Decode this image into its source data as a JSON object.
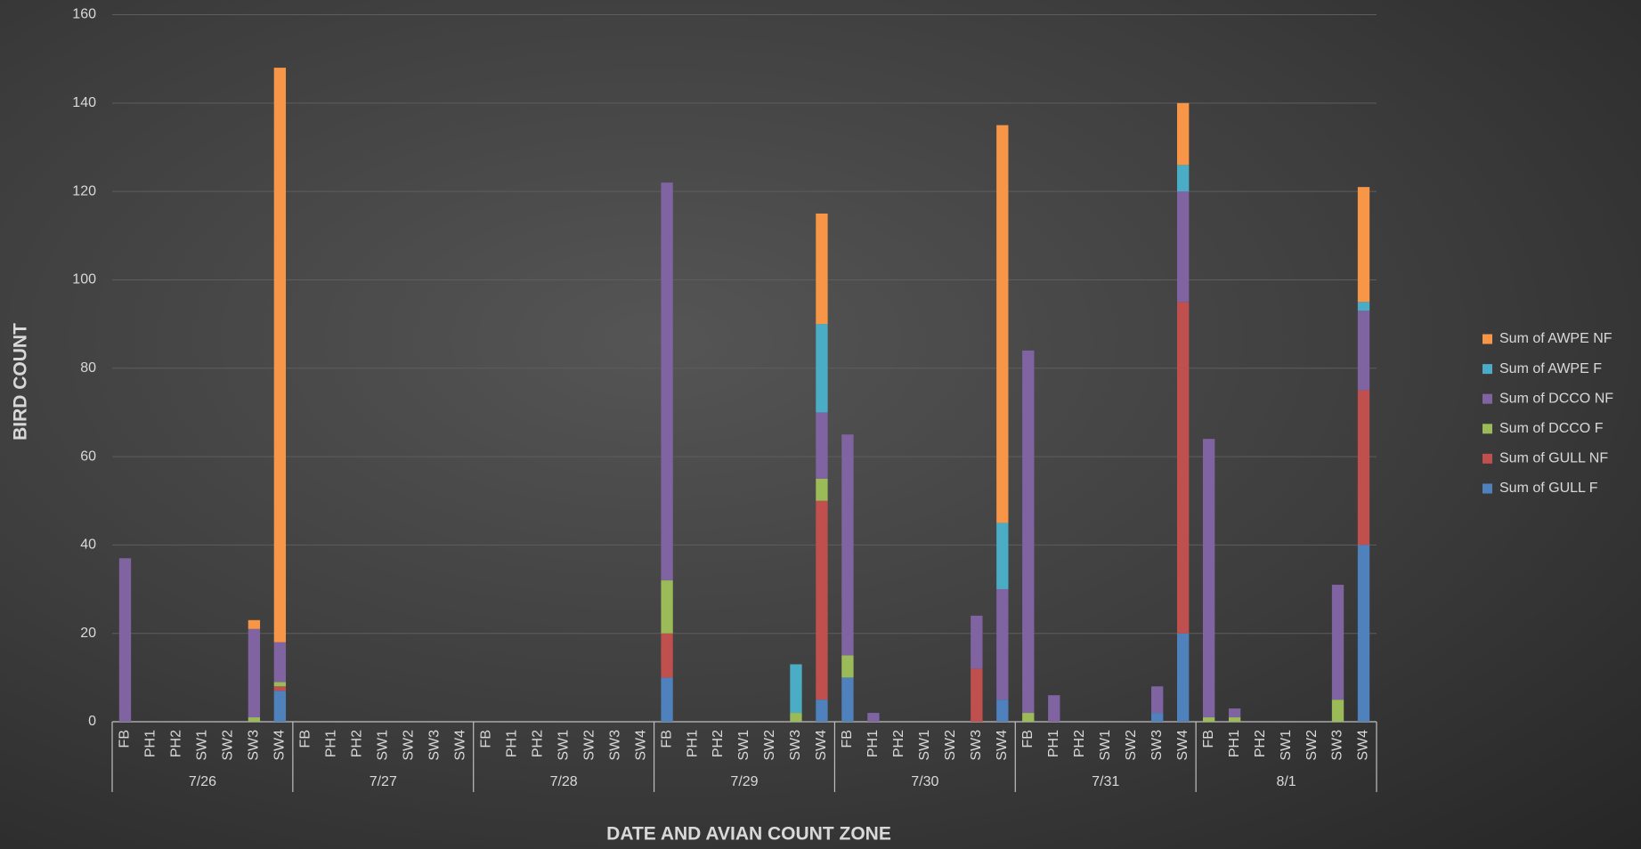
{
  "chart_data": {
    "type": "stacked_bar",
    "x_label": "DATE AND AVIAN COUNT ZONE",
    "y_label": "BIRD COUNT",
    "groups": [
      "7/26",
      "7/27",
      "7/28",
      "7/29",
      "7/30",
      "7/31",
      "8/1"
    ],
    "categories": [
      "FB",
      "PH1",
      "PH2",
      "SW1",
      "SW2",
      "SW3",
      "SW4",
      "FB",
      "PH1",
      "PH2",
      "SW1",
      "SW2",
      "SW3",
      "SW4",
      "FB",
      "PH1",
      "PH2",
      "SW1",
      "SW2",
      "SW3",
      "SW4",
      "FB",
      "PH1",
      "PH2",
      "SW1",
      "SW2",
      "SW3",
      "SW4",
      "FB",
      "PH1",
      "PH2",
      "SW1",
      "SW2",
      "SW3",
      "SW4",
      "FB",
      "PH1",
      "PH2",
      "SW1",
      "SW2",
      "SW3",
      "SW4",
      "FB",
      "PH1",
      "PH2",
      "SW1",
      "SW2",
      "SW3",
      "SW4"
    ],
    "series": [
      {
        "name": "Sum of GULL F",
        "color": "#4f81bd",
        "values": [
          0,
          0,
          0,
          0,
          0,
          0,
          7,
          0,
          0,
          0,
          0,
          0,
          0,
          0,
          0,
          0,
          0,
          0,
          0,
          0,
          0,
          10,
          0,
          0,
          0,
          0,
          0,
          5,
          10,
          0,
          0,
          0,
          0,
          0,
          5,
          0,
          0,
          0,
          0,
          0,
          2,
          20,
          0,
          0,
          0,
          0,
          0,
          0,
          40
        ]
      },
      {
        "name": "Sum of GULL NF",
        "color": "#c0504d",
        "values": [
          0,
          0,
          0,
          0,
          0,
          0,
          1,
          0,
          0,
          0,
          0,
          0,
          0,
          0,
          0,
          0,
          0,
          0,
          0,
          0,
          0,
          10,
          0,
          0,
          0,
          0,
          0,
          45,
          0,
          0,
          0,
          0,
          0,
          12,
          0,
          0,
          0,
          0,
          0,
          0,
          0,
          75,
          0,
          0,
          0,
          0,
          0,
          0,
          35
        ]
      },
      {
        "name": "Sum of DCCO F",
        "color": "#9bbb59",
        "values": [
          0,
          0,
          0,
          0,
          0,
          1,
          1,
          0,
          0,
          0,
          0,
          0,
          0,
          0,
          0,
          0,
          0,
          0,
          0,
          0,
          0,
          12,
          0,
          0,
          0,
          0,
          2,
          5,
          5,
          0,
          0,
          0,
          0,
          0,
          0,
          2,
          0,
          0,
          0,
          0,
          0,
          0,
          1,
          1,
          0,
          0,
          0,
          5,
          0
        ]
      },
      {
        "name": "Sum of DCCO NF",
        "color": "#8064a2",
        "values": [
          37,
          0,
          0,
          0,
          0,
          20,
          9,
          0,
          0,
          0,
          0,
          0,
          0,
          0,
          0,
          0,
          0,
          0,
          0,
          0,
          0,
          90,
          0,
          0,
          0,
          0,
          0,
          15,
          50,
          2,
          0,
          0,
          0,
          12,
          25,
          82,
          6,
          0,
          0,
          0,
          6,
          25,
          63,
          2,
          0,
          0,
          0,
          26,
          18
        ]
      },
      {
        "name": "Sum of AWPE F",
        "color": "#4bacc6",
        "values": [
          0,
          0,
          0,
          0,
          0,
          0,
          0,
          0,
          0,
          0,
          0,
          0,
          0,
          0,
          0,
          0,
          0,
          0,
          0,
          0,
          0,
          0,
          0,
          0,
          0,
          0,
          11,
          20,
          0,
          0,
          0,
          0,
          0,
          0,
          15,
          0,
          0,
          0,
          0,
          0,
          0,
          6,
          0,
          0,
          0,
          0,
          0,
          0,
          2
        ]
      },
      {
        "name": "Sum of AWPE NF",
        "color": "#f79646",
        "values": [
          0,
          0,
          0,
          0,
          0,
          2,
          130,
          0,
          0,
          0,
          0,
          0,
          0,
          0,
          0,
          0,
          0,
          0,
          0,
          0,
          0,
          0,
          0,
          0,
          0,
          0,
          0,
          25,
          0,
          0,
          0,
          0,
          0,
          0,
          90,
          0,
          0,
          0,
          0,
          0,
          0,
          14,
          0,
          0,
          0,
          0,
          0,
          0,
          26
        ]
      }
    ],
    "ylim": [
      0,
      160
    ],
    "yticks": [
      0,
      20,
      40,
      60,
      80,
      100,
      120,
      140,
      160
    ],
    "grid": true,
    "legend": "right"
  }
}
